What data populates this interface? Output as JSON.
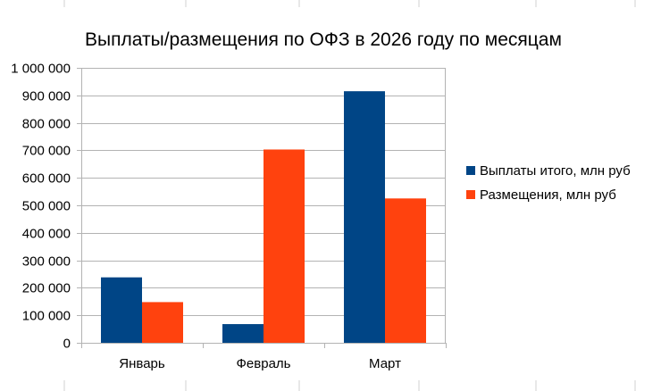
{
  "chart_data": {
    "type": "bar",
    "title": "Выплаты/размещения по ОФЗ в 2026 году по месяцам",
    "categories": [
      "Январь",
      "Февраль",
      "Март"
    ],
    "series": [
      {
        "name": "Выплаты итого, млн руб",
        "color": "#004586",
        "values": [
          238000,
          68000,
          915000
        ]
      },
      {
        "name": "Размещения, млн руб",
        "color": "#ff420e",
        "values": [
          148000,
          703000,
          525000
        ]
      }
    ],
    "ylim": [
      0,
      1000000
    ],
    "y_ticks": [
      0,
      100000,
      200000,
      300000,
      400000,
      500000,
      600000,
      700000,
      800000,
      900000,
      1000000
    ],
    "y_tick_labels": [
      "0",
      "100 000",
      "200 000",
      "300 000",
      "400 000",
      "500 000",
      "600 000",
      "700 000",
      "800 000",
      "900 000",
      "1 000 000"
    ],
    "xlabel": "",
    "ylabel": "",
    "grid": "horizontal",
    "legend_position": "right"
  }
}
